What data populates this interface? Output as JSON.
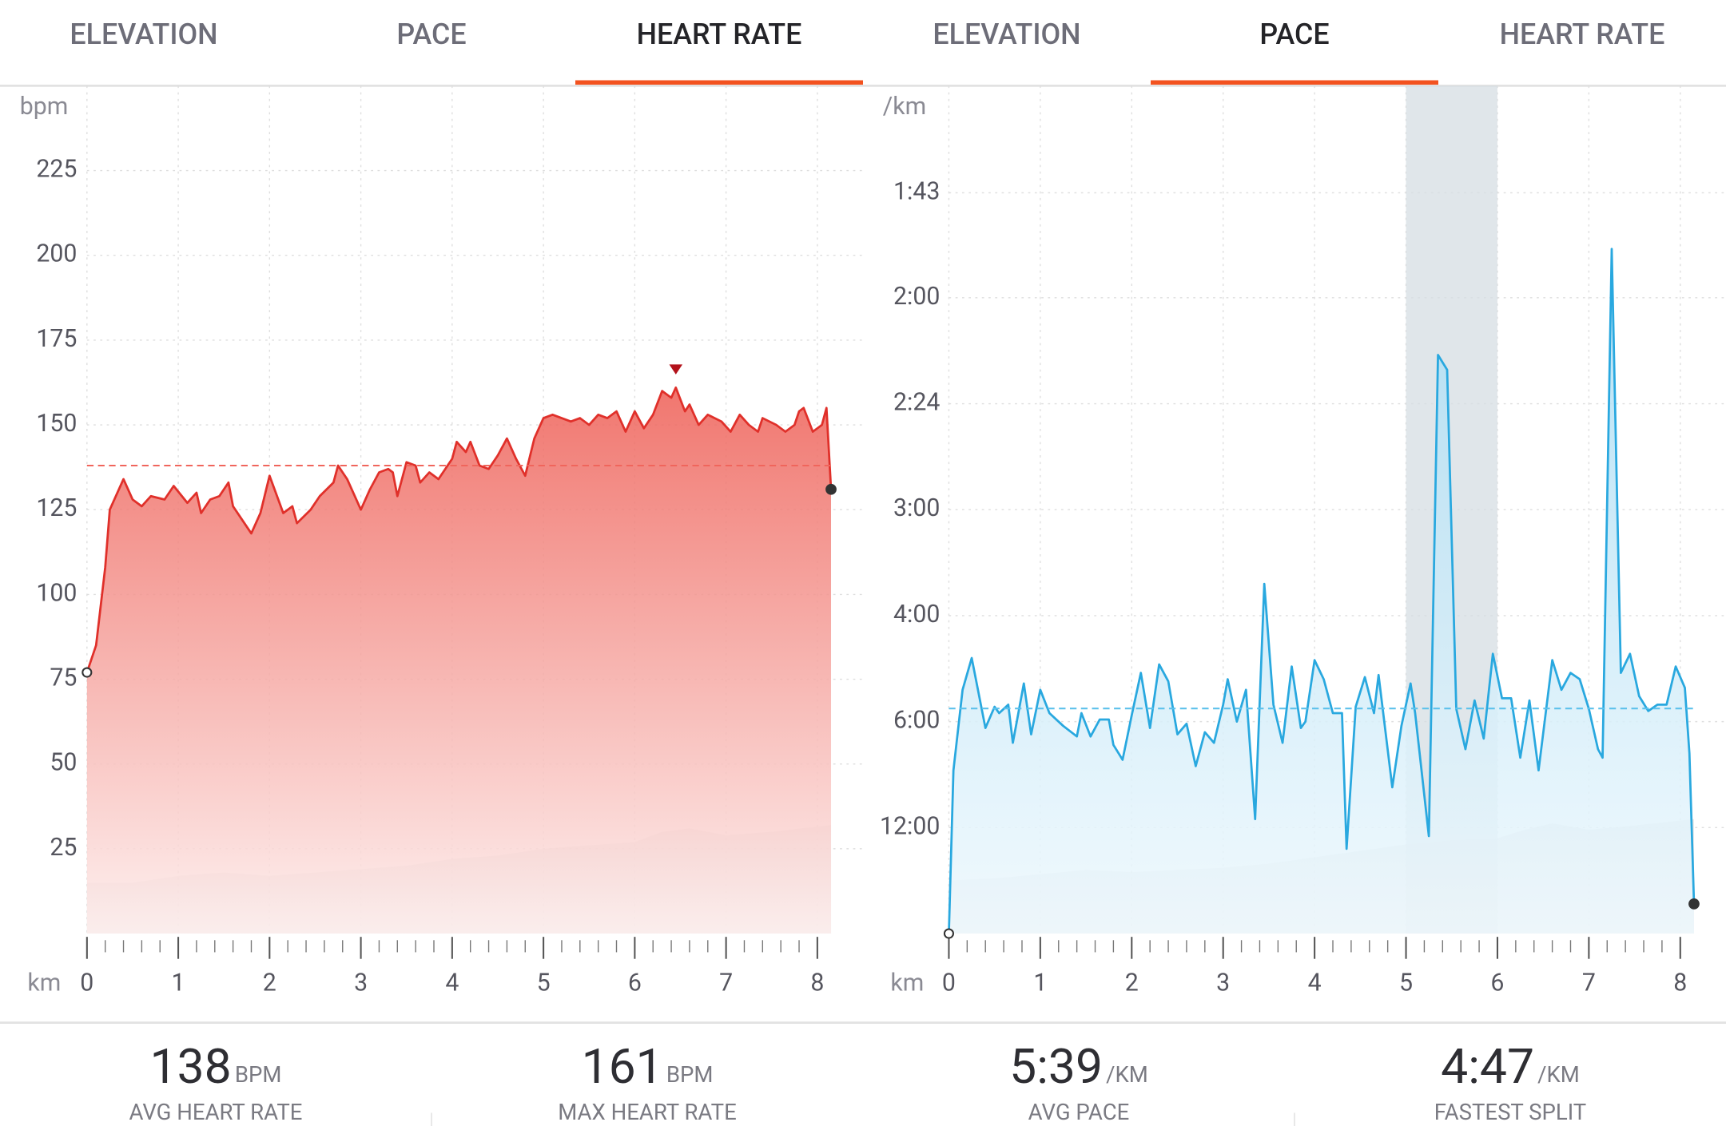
{
  "tabs": [
    {
      "items": [
        "ELEVATION",
        "PACE",
        "HEART RATE"
      ],
      "active": 2
    },
    {
      "items": [
        "ELEVATION",
        "PACE",
        "HEART RATE"
      ],
      "active": 1
    }
  ],
  "chart_data": [
    {
      "type": "area",
      "y_unit": "bpm",
      "x_unit": "km",
      "color": "#e0302a",
      "fill_colors": [
        "#ee5e55",
        "#fdeeed"
      ],
      "avg_color": "#f0655c",
      "xlim": [
        0,
        8.5
      ],
      "xticks": [
        0,
        1,
        2,
        3,
        4,
        5,
        6,
        7,
        8
      ],
      "ylim": [
        0,
        250
      ],
      "yticks": [
        25,
        50,
        75,
        100,
        125,
        150,
        175,
        200,
        225
      ],
      "grid": true,
      "x": [
        0,
        0.1,
        0.2,
        0.25,
        0.4,
        0.5,
        0.6,
        0.7,
        0.85,
        0.95,
        1.1,
        1.2,
        1.25,
        1.35,
        1.45,
        1.55,
        1.6,
        1.8,
        1.9,
        2.0,
        2.15,
        2.25,
        2.3,
        2.45,
        2.55,
        2.7,
        2.75,
        2.85,
        2.95,
        3.0,
        3.1,
        3.2,
        3.3,
        3.35,
        3.4,
        3.5,
        3.6,
        3.65,
        3.75,
        3.85,
        4.0,
        4.05,
        4.15,
        4.2,
        4.3,
        4.4,
        4.5,
        4.6,
        4.7,
        4.8,
        4.9,
        5.0,
        5.1,
        5.2,
        5.3,
        5.4,
        5.5,
        5.6,
        5.7,
        5.8,
        5.9,
        6.0,
        6.1,
        6.2,
        6.3,
        6.4,
        6.45,
        6.55,
        6.6,
        6.7,
        6.8,
        6.95,
        7.05,
        7.15,
        7.25,
        7.35,
        7.4,
        7.55,
        7.65,
        7.75,
        7.8,
        7.85,
        7.95,
        8.05,
        8.1,
        8.15
      ],
      "values": [
        77,
        85,
        108,
        125,
        134,
        128,
        126,
        129,
        128,
        132,
        127,
        130,
        124,
        128,
        129,
        133,
        126,
        118,
        124,
        135,
        124,
        126,
        121,
        125,
        129,
        133,
        138,
        134,
        128,
        125,
        131,
        136,
        137,
        136,
        129,
        139,
        138,
        133,
        136,
        134,
        140,
        145,
        142,
        145,
        138,
        137,
        141,
        146,
        140,
        135,
        146,
        152,
        153,
        152,
        151,
        152,
        150,
        153,
        152,
        154,
        148,
        154,
        149,
        153,
        160,
        158,
        161,
        154,
        156,
        150,
        153,
        151,
        148,
        153,
        150,
        148,
        152,
        150,
        148,
        150,
        154,
        155,
        148,
        150,
        155,
        131
      ],
      "elevation": {
        "color": "#d9d9d9",
        "x": [
          0,
          0.5,
          1,
          1.5,
          2,
          2.5,
          3,
          3.5,
          4,
          4.5,
          5,
          5.5,
          6,
          6.3,
          6.6,
          7,
          7.5,
          8.15
        ],
        "values": [
          15,
          15,
          17,
          18,
          17,
          18,
          19,
          20,
          22,
          23,
          25,
          26,
          27,
          30,
          31,
          29,
          30,
          32
        ]
      },
      "average": 138,
      "max": {
        "x": 6.45,
        "value": 161
      }
    },
    {
      "type": "area",
      "y_unit": "/km",
      "x_unit": "km",
      "color": "#29a8df",
      "fill_colors": [
        "#a9dcf3",
        "#eef8fd"
      ],
      "avg_color": "#5cc1eb",
      "band_color": "#d5dde3",
      "xlim": [
        0,
        8.5
      ],
      "xticks": [
        0,
        1,
        2,
        3,
        4,
        5,
        6,
        7,
        8
      ],
      "ylim": [
        0,
        40
      ],
      "yticks": [
        {
          "value": 5,
          "label": "12:00"
        },
        {
          "value": 10,
          "label": "6:00"
        },
        {
          "value": 15,
          "label": "4:00"
        },
        {
          "value": 20,
          "label": "3:00"
        },
        {
          "value": 25,
          "label": "2:24"
        },
        {
          "value": 30,
          "label": "2:00"
        },
        {
          "value": 34.95,
          "label": "1:43"
        }
      ],
      "grid": true,
      "x": [
        0,
        0.05,
        0.15,
        0.25,
        0.3,
        0.4,
        0.5,
        0.55,
        0.65,
        0.7,
        0.82,
        0.9,
        1.0,
        1.1,
        1.25,
        1.4,
        1.45,
        1.55,
        1.65,
        1.75,
        1.8,
        1.9,
        2.0,
        2.1,
        2.2,
        2.3,
        2.4,
        2.5,
        2.6,
        2.7,
        2.8,
        2.9,
        3.0,
        3.05,
        3.15,
        3.25,
        3.35,
        3.45,
        3.55,
        3.65,
        3.75,
        3.85,
        3.9,
        4.0,
        4.1,
        4.2,
        4.3,
        4.35,
        4.45,
        4.55,
        4.65,
        4.7,
        4.85,
        4.95,
        5.05,
        5.1,
        5.25,
        5.35,
        5.45,
        5.55,
        5.65,
        5.75,
        5.85,
        5.95,
        6.05,
        6.15,
        6.25,
        6.35,
        6.45,
        6.6,
        6.7,
        6.8,
        6.9,
        7.0,
        7.1,
        7.15,
        7.25,
        7.35,
        7.45,
        7.55,
        7.65,
        7.75,
        7.85,
        7.95,
        8.05,
        8.1,
        8.15
      ],
      "values": [
        0,
        7.7,
        11.5,
        13.0,
        11.9,
        9.7,
        10.7,
        10.4,
        10.8,
        9.0,
        11.8,
        9.4,
        11.5,
        10.4,
        9.8,
        9.3,
        10.4,
        9.3,
        10.1,
        10.1,
        8.9,
        8.2,
        10.3,
        12.3,
        9.7,
        12.7,
        11.9,
        9.4,
        9.9,
        7.9,
        9.5,
        9.0,
        10.8,
        12.0,
        10.0,
        11.5,
        5.4,
        16.5,
        10.8,
        9.0,
        12.6,
        9.7,
        10.0,
        12.9,
        12.0,
        10.4,
        10.4,
        4.0,
        10.7,
        12.1,
        10.4,
        12.2,
        6.9,
        9.8,
        11.8,
        10.4,
        4.6,
        27.3,
        26.6,
        10.6,
        8.7,
        11.0,
        9.2,
        13.2,
        11.1,
        11.1,
        8.3,
        11.0,
        7.7,
        12.9,
        11.5,
        12.3,
        12.0,
        10.6,
        8.7,
        8.3,
        32.3,
        12.3,
        13.2,
        11.2,
        10.5,
        10.8,
        10.8,
        12.6,
        11.6,
        8.5,
        1.4
      ],
      "elevation": {
        "color": "#d9d9d9",
        "x": [
          0,
          0.5,
          1,
          1.5,
          2,
          2.5,
          3,
          3.5,
          4,
          4.5,
          5,
          5.5,
          6,
          6.3,
          6.6,
          7,
          7.5,
          8.15
        ],
        "values": [
          2.5,
          2.6,
          2.8,
          3.0,
          2.9,
          3.0,
          3.1,
          3.3,
          3.6,
          3.9,
          4.2,
          4.4,
          4.5,
          4.9,
          5.2,
          4.9,
          5.1,
          5.4
        ]
      },
      "average": {
        "value": 10.62,
        "label": "5:39"
      },
      "fastest_split": {
        "from": 5,
        "to": 6,
        "label": "4:47"
      }
    }
  ],
  "stats": [
    {
      "unit": "BPM",
      "label": "AVG HEART RATE"
    },
    {
      "unit": "BPM",
      "label": "MAX HEART RATE"
    },
    {
      "unit": "/KM",
      "label": "AVG PACE"
    },
    {
      "unit": "/KM",
      "label": "FASTEST SPLIT"
    }
  ]
}
